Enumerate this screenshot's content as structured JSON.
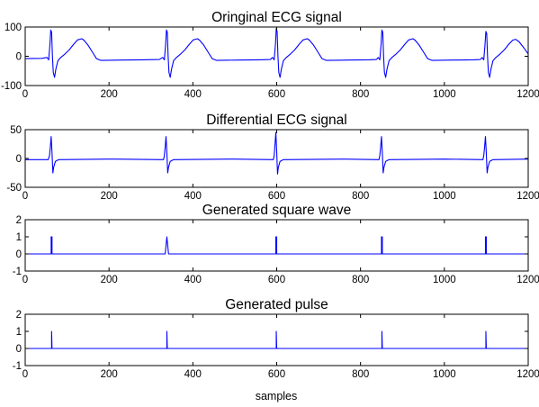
{
  "chart_data": [
    {
      "type": "line",
      "title": "Oringinal ECG signal",
      "xlabel": "",
      "ylabel": "",
      "xlim": [
        0,
        1200
      ],
      "ylim": [
        -100,
        100
      ],
      "xticks": [
        0,
        200,
        400,
        600,
        800,
        1000,
        1200
      ],
      "yticks": [
        -100,
        0,
        100
      ],
      "color": "#0000ff",
      "series": [
        {
          "kind": "ecg",
          "beats": [
            62,
            338,
            600,
            852,
            1100
          ],
          "points": [
            [
              0,
              -8
            ],
            [
              40,
              -7
            ],
            [
              52,
              -4
            ],
            [
              56,
              -12
            ],
            [
              59,
              40
            ],
            [
              61,
              90
            ],
            [
              63,
              82
            ],
            [
              65,
              0
            ],
            [
              67,
              -55
            ],
            [
              70,
              -72
            ],
            [
              73,
              -45
            ],
            [
              78,
              -15
            ],
            [
              85,
              -4
            ],
            [
              95,
              8
            ],
            [
              105,
              22
            ],
            [
              115,
              40
            ],
            [
              125,
              56
            ],
            [
              135,
              60
            ],
            [
              140,
              55
            ],
            [
              150,
              38
            ],
            [
              160,
              15
            ],
            [
              170,
              -8
            ],
            [
              180,
              -14
            ],
            [
              230,
              -13
            ],
            [
              280,
              -12
            ],
            [
              320,
              -11
            ],
            [
              328,
              -4
            ],
            [
              332,
              -12
            ],
            [
              335,
              40
            ],
            [
              337,
              90
            ],
            [
              339,
              82
            ],
            [
              341,
              0
            ],
            [
              343,
              -55
            ],
            [
              346,
              -72
            ],
            [
              349,
              -45
            ],
            [
              354,
              -15
            ],
            [
              361,
              -4
            ],
            [
              371,
              8
            ],
            [
              381,
              22
            ],
            [
              391,
              40
            ],
            [
              401,
              56
            ],
            [
              411,
              60
            ],
            [
              416,
              55
            ],
            [
              426,
              38
            ],
            [
              436,
              15
            ],
            [
              446,
              -8
            ],
            [
              456,
              -14
            ],
            [
              510,
              -13
            ],
            [
              560,
              -12
            ],
            [
              585,
              -11
            ],
            [
              590,
              -4
            ],
            [
              594,
              -12
            ],
            [
              597,
              40
            ],
            [
              599,
              95
            ],
            [
              601,
              85
            ],
            [
              603,
              0
            ],
            [
              605,
              -55
            ],
            [
              608,
              -72
            ],
            [
              611,
              -45
            ],
            [
              616,
              -15
            ],
            [
              623,
              -4
            ],
            [
              633,
              8
            ],
            [
              643,
              22
            ],
            [
              653,
              40
            ],
            [
              663,
              56
            ],
            [
              673,
              60
            ],
            [
              678,
              55
            ],
            [
              688,
              38
            ],
            [
              698,
              15
            ],
            [
              708,
              -8
            ],
            [
              718,
              -14
            ],
            [
              770,
              -13
            ],
            [
              820,
              -12
            ],
            [
              838,
              -11
            ],
            [
              842,
              -4
            ],
            [
              846,
              -12
            ],
            [
              849,
              40
            ],
            [
              851,
              90
            ],
            [
              853,
              82
            ],
            [
              855,
              0
            ],
            [
              857,
              -55
            ],
            [
              860,
              -72
            ],
            [
              863,
              -45
            ],
            [
              868,
              -15
            ],
            [
              875,
              -4
            ],
            [
              885,
              8
            ],
            [
              895,
              22
            ],
            [
              905,
              40
            ],
            [
              915,
              56
            ],
            [
              925,
              60
            ],
            [
              930,
              55
            ],
            [
              940,
              38
            ],
            [
              950,
              15
            ],
            [
              960,
              -8
            ],
            [
              970,
              -14
            ],
            [
              1020,
              -13
            ],
            [
              1070,
              -12
            ],
            [
              1086,
              -11
            ],
            [
              1090,
              -4
            ],
            [
              1094,
              -12
            ],
            [
              1097,
              40
            ],
            [
              1099,
              85
            ],
            [
              1101,
              78
            ],
            [
              1103,
              0
            ],
            [
              1105,
              -55
            ],
            [
              1108,
              -72
            ],
            [
              1111,
              -45
            ],
            [
              1116,
              -15
            ],
            [
              1123,
              -4
            ],
            [
              1133,
              8
            ],
            [
              1143,
              22
            ],
            [
              1153,
              40
            ],
            [
              1163,
              55
            ],
            [
              1170,
              58
            ],
            [
              1178,
              50
            ],
            [
              1188,
              32
            ],
            [
              1198,
              12
            ],
            [
              1200,
              8
            ]
          ]
        }
      ]
    },
    {
      "type": "line",
      "title": "Differential ECG signal",
      "xlabel": "",
      "ylabel": "",
      "xlim": [
        0,
        1200
      ],
      "ylim": [
        -50,
        50
      ],
      "xticks": [
        0,
        200,
        400,
        600,
        800,
        1000,
        1200
      ],
      "yticks": [
        -50,
        0,
        50
      ],
      "color": "#0000ff",
      "series": [
        {
          "kind": "diff",
          "points": [
            [
              0,
              -2
            ],
            [
              55,
              -2
            ],
            [
              58,
              5
            ],
            [
              60,
              20
            ],
            [
              62,
              38
            ],
            [
              64,
              10
            ],
            [
              66,
              -25
            ],
            [
              68,
              -15
            ],
            [
              72,
              -5
            ],
            [
              80,
              -2
            ],
            [
              200,
              -1
            ],
            [
              330,
              -2
            ],
            [
              332,
              5
            ],
            [
              334,
              20
            ],
            [
              336,
              38
            ],
            [
              338,
              10
            ],
            [
              340,
              -25
            ],
            [
              342,
              -15
            ],
            [
              346,
              -5
            ],
            [
              354,
              -2
            ],
            [
              500,
              -1
            ],
            [
              592,
              -2
            ],
            [
              594,
              5
            ],
            [
              596,
              25
            ],
            [
              598,
              45
            ],
            [
              600,
              12
            ],
            [
              602,
              -27
            ],
            [
              604,
              -15
            ],
            [
              608,
              -5
            ],
            [
              616,
              -2
            ],
            [
              760,
              -1
            ],
            [
              844,
              -2
            ],
            [
              846,
              5
            ],
            [
              848,
              20
            ],
            [
              850,
              38
            ],
            [
              852,
              10
            ],
            [
              854,
              -25
            ],
            [
              856,
              -15
            ],
            [
              860,
              -5
            ],
            [
              868,
              -2
            ],
            [
              1000,
              -1
            ],
            [
              1092,
              -2
            ],
            [
              1094,
              5
            ],
            [
              1096,
              20
            ],
            [
              1098,
              38
            ],
            [
              1100,
              10
            ],
            [
              1102,
              -25
            ],
            [
              1104,
              -15
            ],
            [
              1108,
              -5
            ],
            [
              1116,
              -2
            ],
            [
              1200,
              -1
            ]
          ]
        }
      ]
    },
    {
      "type": "line",
      "title": "Generated square wave",
      "xlabel": "",
      "ylabel": "",
      "xlim": [
        0,
        1200
      ],
      "ylim": [
        -1,
        2
      ],
      "xticks": [
        0,
        200,
        400,
        600,
        800,
        1000,
        1200
      ],
      "yticks": [
        -1,
        0,
        1,
        2
      ],
      "color": "#0000ff",
      "series": [
        {
          "kind": "square",
          "points": [
            [
              0,
              0
            ],
            [
              62,
              0
            ],
            [
              62,
              1
            ],
            [
              64,
              1
            ],
            [
              64,
              0
            ],
            [
              334,
              0
            ],
            [
              338,
              1
            ],
            [
              342,
              0
            ],
            [
              598,
              0
            ],
            [
              598,
              1
            ],
            [
              600,
              1
            ],
            [
              600,
              0
            ],
            [
              850,
              0
            ],
            [
              850,
              1
            ],
            [
              852,
              1
            ],
            [
              852,
              0
            ],
            [
              1098,
              0
            ],
            [
              1098,
              1
            ],
            [
              1100,
              1
            ],
            [
              1100,
              0
            ],
            [
              1200,
              0
            ]
          ]
        }
      ]
    },
    {
      "type": "line",
      "title": "Generated pulse",
      "xlabel": "samples",
      "ylabel": "",
      "xlim": [
        0,
        1200
      ],
      "ylim": [
        -1,
        2
      ],
      "xticks": [
        0,
        200,
        400,
        600,
        800,
        1000,
        1200
      ],
      "yticks": [
        -1,
        0,
        1,
        2
      ],
      "color": "#0000ff",
      "series": [
        {
          "kind": "pulse",
          "points": [
            [
              0,
              0
            ],
            [
              63,
              0
            ],
            [
              63,
              1
            ],
            [
              64,
              0
            ],
            [
              338,
              0
            ],
            [
              338,
              1
            ],
            [
              339,
              0
            ],
            [
              599,
              0
            ],
            [
              599,
              1
            ],
            [
              600,
              0
            ],
            [
              851,
              0
            ],
            [
              851,
              1
            ],
            [
              852,
              0
            ],
            [
              1099,
              0
            ],
            [
              1099,
              1
            ],
            [
              1100,
              0
            ],
            [
              1200,
              0
            ]
          ]
        }
      ]
    }
  ]
}
